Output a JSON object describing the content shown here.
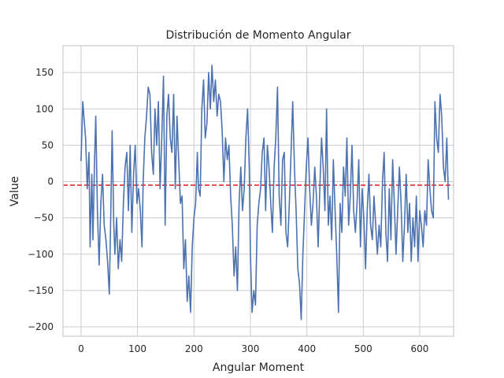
{
  "chart_data": {
    "type": "line",
    "title": "Distribución de Momento Angular",
    "xlabel": "Angular Moment",
    "ylabel": "Value",
    "xlim": [
      -32,
      660
    ],
    "ylim": [
      -213,
      187
    ],
    "xticks": [
      0,
      100,
      200,
      300,
      400,
      500,
      600
    ],
    "yticks": [
      -200,
      -150,
      -100,
      -50,
      0,
      50,
      100,
      150
    ],
    "grid": true,
    "colors": {
      "series": "#4c72b0",
      "reference": "#e31a1c",
      "grid": "#cccccc",
      "spine": "#cccccc"
    },
    "reference_line": {
      "y": -5,
      "style": "dashed"
    },
    "series": [
      {
        "points": [
          [
            0,
            28
          ],
          [
            3,
            110
          ],
          [
            5,
            90
          ],
          [
            8,
            60
          ],
          [
            11,
            -10
          ],
          [
            14,
            40
          ],
          [
            16,
            -90
          ],
          [
            19,
            10
          ],
          [
            21,
            -80
          ],
          [
            24,
            30
          ],
          [
            26,
            90
          ],
          [
            29,
            -40
          ],
          [
            32,
            -115
          ],
          [
            35,
            -30
          ],
          [
            38,
            10
          ],
          [
            41,
            -60
          ],
          [
            44,
            -80
          ],
          [
            47,
            -110
          ],
          [
            50,
            -155
          ],
          [
            53,
            -30
          ],
          [
            55,
            70
          ],
          [
            58,
            -60
          ],
          [
            60,
            -100
          ],
          [
            63,
            -50
          ],
          [
            66,
            -120
          ],
          [
            69,
            -80
          ],
          [
            72,
            -110
          ],
          [
            75,
            -30
          ],
          [
            78,
            20
          ],
          [
            81,
            40
          ],
          [
            84,
            -40
          ],
          [
            87,
            50
          ],
          [
            90,
            -70
          ],
          [
            93,
            10
          ],
          [
            96,
            50
          ],
          [
            99,
            -30
          ],
          [
            102,
            -10
          ],
          [
            105,
            -40
          ],
          [
            108,
            -90
          ],
          [
            110,
            0
          ],
          [
            113,
            60
          ],
          [
            116,
            90
          ],
          [
            119,
            130
          ],
          [
            122,
            120
          ],
          [
            125,
            40
          ],
          [
            128,
            10
          ],
          [
            131,
            100
          ],
          [
            134,
            50
          ],
          [
            137,
            110
          ],
          [
            140,
            -10
          ],
          [
            143,
            60
          ],
          [
            146,
            145
          ],
          [
            149,
            -60
          ],
          [
            152,
            90
          ],
          [
            155,
            120
          ],
          [
            158,
            60
          ],
          [
            161,
            40
          ],
          [
            164,
            120
          ],
          [
            167,
            -10
          ],
          [
            170,
            90
          ],
          [
            173,
            30
          ],
          [
            176,
            -30
          ],
          [
            179,
            -20
          ],
          [
            182,
            -120
          ],
          [
            185,
            -80
          ],
          [
            188,
            -165
          ],
          [
            191,
            -130
          ],
          [
            194,
            -180
          ],
          [
            197,
            -90
          ],
          [
            200,
            -50
          ],
          [
            203,
            -30
          ],
          [
            206,
            40
          ],
          [
            208,
            -10
          ],
          [
            211,
            -20
          ],
          [
            214,
            100
          ],
          [
            217,
            140
          ],
          [
            220,
            60
          ],
          [
            223,
            80
          ],
          [
            226,
            150
          ],
          [
            229,
            100
          ],
          [
            232,
            160
          ],
          [
            235,
            110
          ],
          [
            238,
            140
          ],
          [
            241,
            90
          ],
          [
            244,
            120
          ],
          [
            247,
            110
          ],
          [
            250,
            70
          ],
          [
            253,
            0
          ],
          [
            256,
            60
          ],
          [
            259,
            30
          ],
          [
            262,
            50
          ],
          [
            265,
            -20
          ],
          [
            268,
            -60
          ],
          [
            271,
            -130
          ],
          [
            274,
            -90
          ],
          [
            277,
            -150
          ],
          [
            280,
            -30
          ],
          [
            283,
            20
          ],
          [
            286,
            -40
          ],
          [
            289,
            -10
          ],
          [
            292,
            60
          ],
          [
            295,
            100
          ],
          [
            298,
            20
          ],
          [
            300,
            -100
          ],
          [
            303,
            -180
          ],
          [
            306,
            -150
          ],
          [
            309,
            -170
          ],
          [
            312,
            -60
          ],
          [
            315,
            -30
          ],
          [
            318,
            -10
          ],
          [
            321,
            40
          ],
          [
            324,
            60
          ],
          [
            327,
            -40
          ],
          [
            330,
            50
          ],
          [
            333,
            20
          ],
          [
            336,
            -30
          ],
          [
            339,
            -70
          ],
          [
            342,
            20
          ],
          [
            345,
            60
          ],
          [
            348,
            130
          ],
          [
            351,
            -20
          ],
          [
            354,
            -60
          ],
          [
            357,
            30
          ],
          [
            360,
            40
          ],
          [
            363,
            -70
          ],
          [
            366,
            -90
          ],
          [
            369,
            -30
          ],
          [
            372,
            40
          ],
          [
            375,
            110
          ],
          [
            378,
            20
          ],
          [
            381,
            -40
          ],
          [
            384,
            -120
          ],
          [
            387,
            -140
          ],
          [
            390,
            -190
          ],
          [
            393,
            -100
          ],
          [
            396,
            -40
          ],
          [
            399,
            20
          ],
          [
            402,
            60
          ],
          [
            405,
            -10
          ],
          [
            408,
            -60
          ],
          [
            411,
            -30
          ],
          [
            414,
            20
          ],
          [
            417,
            -20
          ],
          [
            420,
            -90
          ],
          [
            423,
            -10
          ],
          [
            426,
            60
          ],
          [
            429,
            20
          ],
          [
            432,
            -40
          ],
          [
            435,
            100
          ],
          [
            438,
            -60
          ],
          [
            441,
            -20
          ],
          [
            444,
            -80
          ],
          [
            447,
            30
          ],
          [
            450,
            -40
          ],
          [
            453,
            -100
          ],
          [
            456,
            -180
          ],
          [
            459,
            -30
          ],
          [
            462,
            -70
          ],
          [
            465,
            20
          ],
          [
            468,
            -20
          ],
          [
            471,
            60
          ],
          [
            474,
            -60
          ],
          [
            477,
            -20
          ],
          [
            480,
            50
          ],
          [
            483,
            -40
          ],
          [
            486,
            -70
          ],
          [
            489,
            -30
          ],
          [
            492,
            30
          ],
          [
            495,
            -90
          ],
          [
            498,
            -10
          ],
          [
            501,
            -50
          ],
          [
            504,
            -120
          ],
          [
            507,
            -40
          ],
          [
            510,
            10
          ],
          [
            513,
            -60
          ],
          [
            516,
            -80
          ],
          [
            519,
            -20
          ],
          [
            522,
            -60
          ],
          [
            525,
            -100
          ],
          [
            528,
            -60
          ],
          [
            531,
            -90
          ],
          [
            534,
            0
          ],
          [
            537,
            40
          ],
          [
            540,
            -70
          ],
          [
            543,
            -110
          ],
          [
            546,
            -10
          ],
          [
            549,
            -80
          ],
          [
            552,
            30
          ],
          [
            555,
            -30
          ],
          [
            558,
            -100
          ],
          [
            561,
            -40
          ],
          [
            564,
            20
          ],
          [
            567,
            -30
          ],
          [
            570,
            -110
          ],
          [
            573,
            -60
          ],
          [
            576,
            10
          ],
          [
            579,
            -70
          ],
          [
            582,
            -30
          ],
          [
            585,
            -110
          ],
          [
            588,
            -50
          ],
          [
            591,
            -90
          ],
          [
            594,
            -20
          ],
          [
            597,
            -110
          ],
          [
            600,
            -40
          ],
          [
            603,
            -60
          ],
          [
            606,
            -90
          ],
          [
            609,
            -40
          ],
          [
            612,
            -60
          ],
          [
            615,
            30
          ],
          [
            618,
            -10
          ],
          [
            621,
            -40
          ],
          [
            624,
            -50
          ],
          [
            627,
            110
          ],
          [
            630,
            60
          ],
          [
            633,
            40
          ],
          [
            636,
            120
          ],
          [
            639,
            90
          ],
          [
            642,
            20
          ],
          [
            645,
            0
          ],
          [
            648,
            60
          ],
          [
            651,
            -25
          ]
        ]
      }
    ]
  }
}
